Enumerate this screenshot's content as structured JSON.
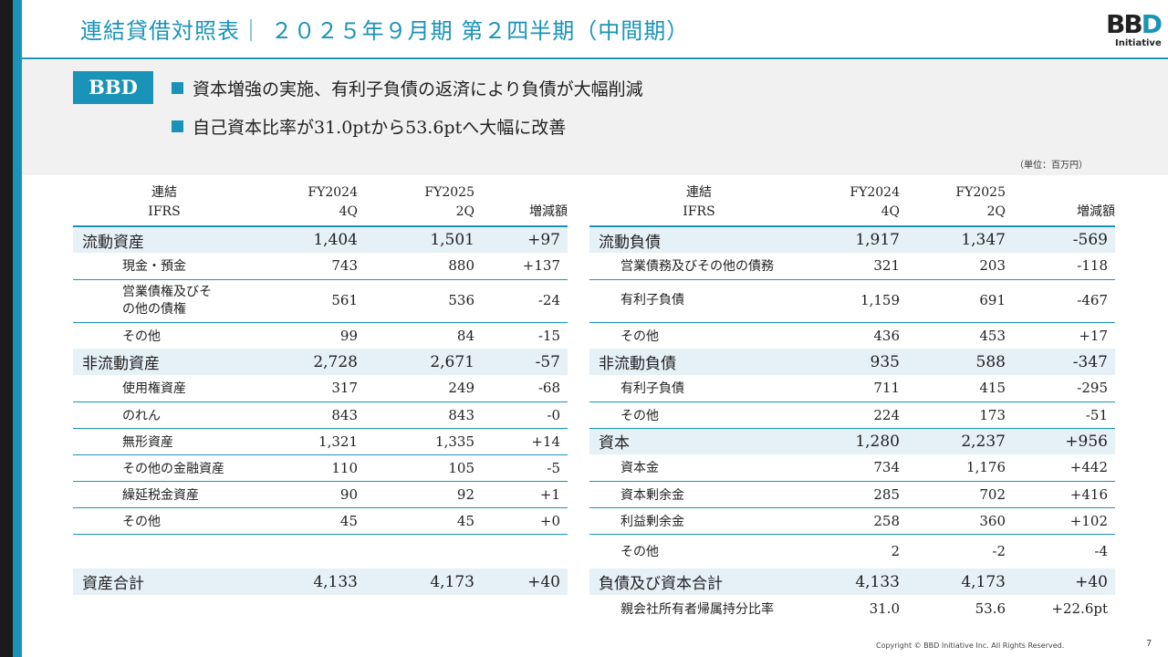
{
  "header": {
    "title": "連結貸借対照表｜ ２０２５年９月期 第２四半期（中間期）",
    "logo_mark": "BBD",
    "logo_sub": "Initiative"
  },
  "summary": {
    "badge": "BBD",
    "points": [
      "資本増強の実施、有利子負債の返済により負債が大幅削減",
      "自己資本比率が31.0ptから53.6ptへ大幅に改善"
    ]
  },
  "unit": "（単位：百万円）",
  "assets_table": {
    "headers": {
      "label": [
        "連結",
        "IFRS"
      ],
      "col1": [
        "FY2024",
        "4Q"
      ],
      "col2": [
        "FY2025",
        "2Q"
      ],
      "col3": "増減額"
    },
    "rows": [
      {
        "type": "main",
        "label": "流動資産",
        "v1": "1,404",
        "v2": "1,501",
        "diff": "+97"
      },
      {
        "type": "sub",
        "label": "現金・預金",
        "v1": "743",
        "v2": "880",
        "diff": "+137"
      },
      {
        "type": "sub",
        "label": "営業債権及びその他の債権",
        "v1": "561",
        "v2": "536",
        "diff": "-24"
      },
      {
        "type": "sub",
        "label": "その他",
        "v1": "99",
        "v2": "84",
        "diff": "-15"
      },
      {
        "type": "main",
        "label": "非流動資産",
        "v1": "2,728",
        "v2": "2,671",
        "diff": "-57"
      },
      {
        "type": "sub",
        "label": "使用権資産",
        "v1": "317",
        "v2": "249",
        "diff": "-68"
      },
      {
        "type": "sub",
        "label": "のれん",
        "v1": "843",
        "v2": "843",
        "diff": "-0"
      },
      {
        "type": "sub",
        "label": "無形資産",
        "v1": "1,321",
        "v2": "1,335",
        "diff": "+14"
      },
      {
        "type": "sub",
        "label": "その他の金融資産",
        "v1": "110",
        "v2": "105",
        "diff": "-5"
      },
      {
        "type": "sub",
        "label": "繰延税金資産",
        "v1": "90",
        "v2": "92",
        "diff": "+1"
      },
      {
        "type": "sub",
        "label": "その他",
        "v1": "45",
        "v2": "45",
        "diff": "+0"
      },
      {
        "type": "main",
        "label": "資産合計",
        "v1": "4,133",
        "v2": "4,173",
        "diff": "+40"
      }
    ]
  },
  "liabilities_table": {
    "headers": {
      "label": [
        "連結",
        "IFRS"
      ],
      "col1": [
        "FY2024",
        "4Q"
      ],
      "col2": [
        "FY2025",
        "2Q"
      ],
      "col3": "増減額"
    },
    "rows": [
      {
        "type": "main",
        "label": "流動負債",
        "v1": "1,917",
        "v2": "1,347",
        "diff": "-569"
      },
      {
        "type": "sub",
        "label": "営業債務及びその他の債務",
        "v1": "321",
        "v2": "203",
        "diff": "-118"
      },
      {
        "type": "sub",
        "label": "有利子負債",
        "v1": "1,159",
        "v2": "691",
        "diff": "-467"
      },
      {
        "type": "sub",
        "label": "その他",
        "v1": "436",
        "v2": "453",
        "diff": "+17"
      },
      {
        "type": "main",
        "label": "非流動負債",
        "v1": "935",
        "v2": "588",
        "diff": "-347"
      },
      {
        "type": "sub",
        "label": "有利子負債",
        "v1": "711",
        "v2": "415",
        "diff": "-295"
      },
      {
        "type": "sub",
        "label": "その他",
        "v1": "224",
        "v2": "173",
        "diff": "-51"
      },
      {
        "type": "main",
        "label": "資本",
        "v1": "1,280",
        "v2": "2,237",
        "diff": "+956"
      },
      {
        "type": "sub",
        "label": "資本金",
        "v1": "734",
        "v2": "1,176",
        "diff": "+442"
      },
      {
        "type": "sub",
        "label": "資本剰余金",
        "v1": "285",
        "v2": "702",
        "diff": "+416"
      },
      {
        "type": "sub",
        "label": "利益剰余金",
        "v1": "258",
        "v2": "360",
        "diff": "+102"
      },
      {
        "type": "sub",
        "label": "その他",
        "v1": "2",
        "v2": "-2",
        "diff": "-4"
      },
      {
        "type": "main",
        "label": "負債及び資本合計",
        "v1": "4,133",
        "v2": "4,173",
        "diff": "+40"
      },
      {
        "type": "sub",
        "label": "親会社所有者帰属持分比率",
        "v1": "31.0",
        "v2": "53.6",
        "diff": "+22.6pt"
      }
    ]
  },
  "footer": {
    "copyright": "Copyright © BBD Initiative Inc. All Rights Reserved.",
    "page": "7"
  },
  "colors": {
    "accent": "#1a93b8",
    "row_highlight": "#e6f0f7",
    "summary_bg": "#f1f1f1"
  }
}
